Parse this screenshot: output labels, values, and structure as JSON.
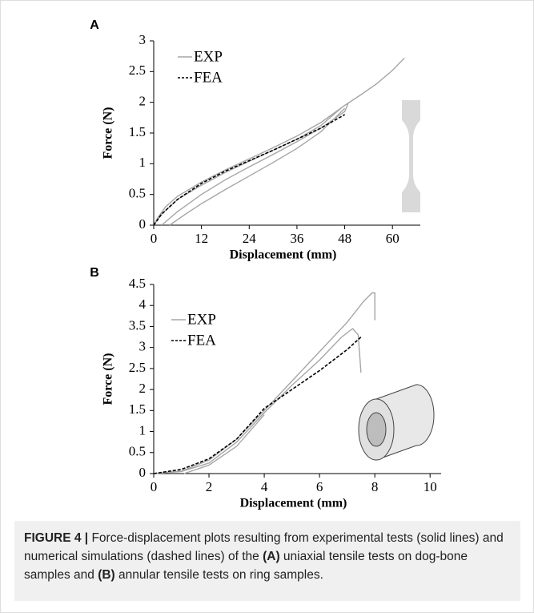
{
  "chart_data": [
    {
      "type": "line",
      "panel": "A",
      "xlabel": "Displacement (mm)",
      "ylabel": "Force (N)",
      "xlim": [
        0,
        67
      ],
      "ylim": [
        0,
        3
      ],
      "xticks": [
        0,
        12,
        24,
        36,
        48,
        60
      ],
      "yticks": [
        0,
        0.5,
        1,
        1.5,
        2,
        2.5,
        3
      ],
      "legend": "upper left",
      "series": [
        {
          "name": "EXP",
          "color": "#a6a6a6",
          "linestyle": "solid",
          "x": [
            0,
            1,
            3,
            6,
            12,
            18,
            24,
            30,
            36,
            42,
            48,
            52,
            56,
            60,
            63,
            null,
            4,
            8,
            12,
            18,
            24,
            30,
            36,
            42,
            48,
            null,
            2,
            6,
            12,
            18,
            24,
            30,
            36,
            42,
            48,
            49,
            null,
            0,
            2,
            6,
            12,
            18,
            24,
            30,
            36,
            42,
            47
          ],
          "values": [
            0,
            0.12,
            0.3,
            0.47,
            0.7,
            0.9,
            1.08,
            1.26,
            1.45,
            1.67,
            1.95,
            2.12,
            2.3,
            2.52,
            2.72,
            null,
            0,
            0.18,
            0.35,
            0.58,
            0.8,
            1.02,
            1.25,
            1.52,
            1.9,
            null,
            0,
            0.22,
            0.5,
            0.74,
            0.95,
            1.15,
            1.36,
            1.58,
            1.85,
            2.0,
            null,
            0,
            0.18,
            0.42,
            0.65,
            0.86,
            1.04,
            1.22,
            1.4,
            1.62,
            1.9
          ]
        },
        {
          "name": "FEA",
          "color": "#000000",
          "linestyle": "dashed",
          "x": [
            0,
            2,
            6,
            12,
            18,
            24,
            30,
            36,
            42,
            48
          ],
          "values": [
            0,
            0.18,
            0.42,
            0.68,
            0.88,
            1.05,
            1.22,
            1.4,
            1.58,
            1.8
          ]
        }
      ]
    },
    {
      "type": "line",
      "panel": "B",
      "xlabel": "Displacement (mm)",
      "ylabel": "Force (N)",
      "xlim": [
        0,
        10.4
      ],
      "ylim": [
        0,
        4.5
      ],
      "xticks": [
        0,
        2,
        4,
        6,
        8,
        10
      ],
      "yticks": [
        0,
        0.5,
        1,
        1.5,
        2,
        2.5,
        3,
        3.5,
        4,
        4.5
      ],
      "legend": "upper left",
      "series": [
        {
          "name": "EXP",
          "color": "#a6a6a6",
          "linestyle": "solid",
          "x": [
            0,
            1,
            2,
            3,
            4,
            5,
            6,
            7,
            7.6,
            7.9,
            8.0,
            8.0,
            null,
            0,
            1,
            2,
            3,
            4,
            5,
            6,
            6.8,
            7.2,
            7.4,
            7.5,
            null,
            1.1,
            2,
            3,
            4
          ],
          "values": [
            0,
            0.06,
            0.32,
            0.82,
            1.5,
            2.2,
            2.9,
            3.6,
            4.1,
            4.3,
            4.3,
            3.65,
            null,
            0,
            0.05,
            0.25,
            0.75,
            1.45,
            2.1,
            2.7,
            3.25,
            3.45,
            3.3,
            2.4,
            null,
            0,
            0.2,
            0.65,
            1.4
          ]
        },
        {
          "name": "FEA",
          "color": "#000000",
          "linestyle": "dashed",
          "x": [
            0,
            1,
            2,
            3,
            4,
            5,
            6,
            7,
            7.5
          ],
          "values": [
            0,
            0.1,
            0.35,
            0.82,
            1.55,
            2.0,
            2.45,
            2.95,
            3.25
          ]
        }
      ]
    }
  ],
  "caption": {
    "label": "FIGURE 4 |",
    "parts": [
      " Force-displacement plots resulting from experimental tests (solid lines) and numerical simulations (dashed lines) of the ",
      "(A)",
      " uniaxial tensile tests on dog-bone samples and ",
      "(B)",
      " annular tensile tests on ring samples."
    ]
  }
}
